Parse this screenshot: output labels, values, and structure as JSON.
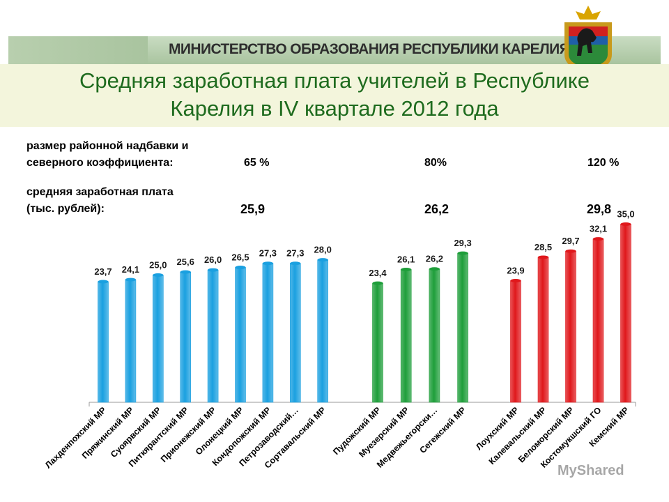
{
  "header": {
    "ministry": "МИНИСТЕРСТВО ОБРАЗОВАНИЯ РЕСПУБЛИКИ КАРЕЛИЯ",
    "title_line1": "Средняя заработная плата учителей в Республике",
    "title_line2": "Карелия в IV квартале 2012 года"
  },
  "info": {
    "coef_label_line1": "размер районной надбавки и",
    "coef_label_line2": "северного коэффициента:",
    "coef_values": [
      "65 %",
      "80%",
      "120 %"
    ],
    "salary_label_line1": "средняя заработная плата",
    "salary_label_line2": "(тыс. рублей):",
    "salary_values": [
      "25,9",
      "26,2",
      "29,8"
    ]
  },
  "watermark": "MyShared",
  "colors": {
    "group1": "#1aa0e0",
    "group2": "#1e9e3a",
    "group3": "#e0181c",
    "title": "#1e6b1e"
  },
  "chart_data": {
    "type": "bar",
    "ylim": [
      0,
      37
    ],
    "groups": [
      {
        "name": "65 %",
        "color": "#1aa0e0",
        "categories": [
          "Лахденпохский МР",
          "Пряжинский МР",
          "Суоярвский МР",
          "Питкярантский МР",
          "Прионежский МР",
          "Олонецкий МР",
          "Кондопожский МР",
          "Петрозаводский…",
          "Сортавальский МР"
        ],
        "values": [
          23.7,
          24.1,
          25.0,
          25.6,
          26.0,
          26.5,
          27.3,
          27.3,
          28.0
        ],
        "labels": [
          "23,7",
          "24,1",
          "25,0",
          "25,6",
          "26,0",
          "26,5",
          "27,3",
          "27,3",
          "28,0"
        ]
      },
      {
        "name": "80%",
        "color": "#1e9e3a",
        "categories": [
          "Пудожский МР",
          "Муезерский МР",
          "Медвежьегорски…",
          "Сегежский МР"
        ],
        "values": [
          23.4,
          26.1,
          26.2,
          29.3
        ],
        "labels": [
          "23,4",
          "26,1",
          "26,2",
          "29,3"
        ]
      },
      {
        "name": "120 %",
        "color": "#e0181c",
        "categories": [
          "Лоухский МР",
          "Калевальский МР",
          "Беломорский МР",
          "Костомукшский ГО",
          "Кемский МР"
        ],
        "values": [
          23.9,
          28.5,
          29.7,
          32.1,
          35.0
        ],
        "labels": [
          "23,9",
          "28,5",
          "29,7",
          "32,1",
          "35,0"
        ]
      }
    ]
  }
}
